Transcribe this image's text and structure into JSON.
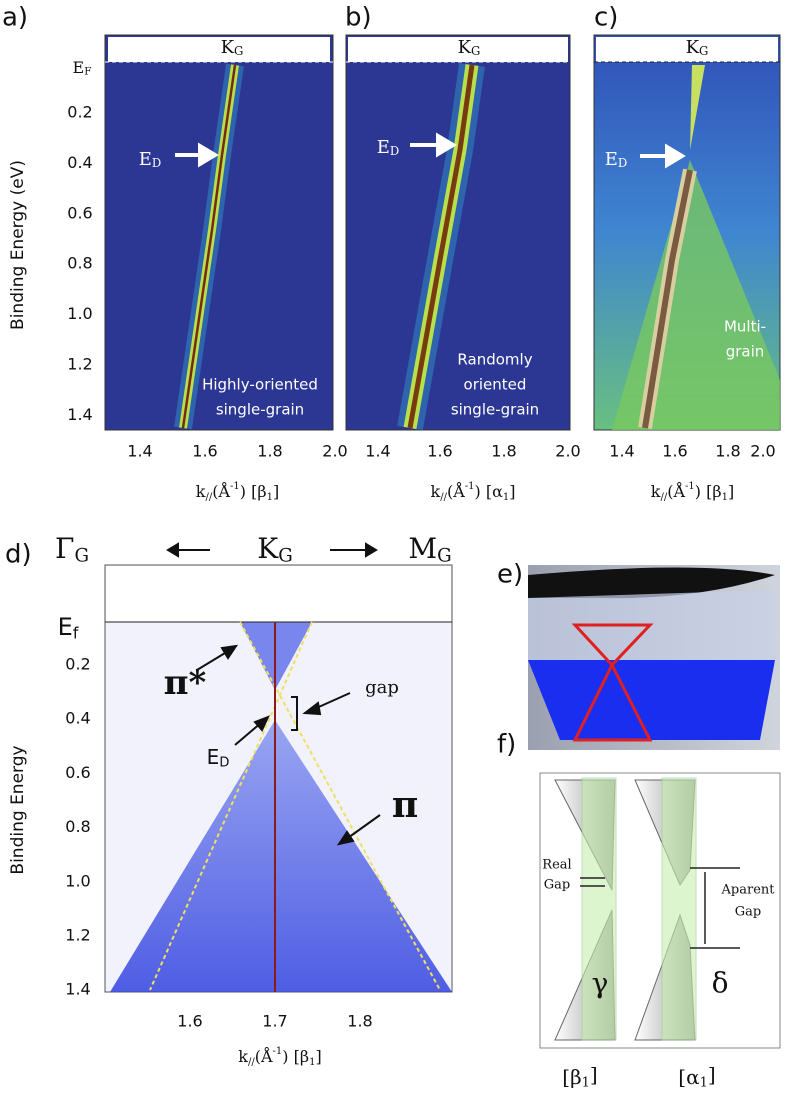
{
  "panels_abc": [
    {
      "letter": "a)",
      "point": {
        "base": "K",
        "sub": "G"
      },
      "dirac": {
        "base": "E",
        "sub": "D"
      },
      "note": [
        "Highly-oriented",
        "single-grain"
      ],
      "x_ticks": [
        "1.4",
        "1.6",
        "1.8",
        "2.0"
      ],
      "x_label": [
        {
          "text": "k"
        },
        {
          "text": "//",
          "sub": true
        },
        {
          "text": "(Å"
        },
        {
          "text": "-1",
          "sup": true
        },
        {
          "text": ") [β"
        },
        {
          "text": "1",
          "sub": true
        },
        {
          "text": "]"
        }
      ]
    },
    {
      "letter": "b)",
      "point": {
        "base": "K",
        "sub": "G"
      },
      "dirac": {
        "base": "E",
        "sub": "D"
      },
      "note": [
        "Randomly",
        "oriented",
        "single-grain"
      ],
      "x_ticks": [
        "1.4",
        "1.6",
        "1.8",
        "2.0"
      ],
      "x_label": [
        {
          "text": "k"
        },
        {
          "text": "//",
          "sub": true
        },
        {
          "text": "(Å"
        },
        {
          "text": "-1",
          "sup": true
        },
        {
          "text": ") [α"
        },
        {
          "text": "1",
          "sub": true
        },
        {
          "text": "]"
        }
      ]
    },
    {
      "letter": "c)",
      "point": {
        "base": "K",
        "sub": "G"
      },
      "dirac": {
        "base": "E",
        "sub": "D"
      },
      "note": [
        "Multi-",
        "grain"
      ],
      "x_ticks": [
        "1.4",
        "1.6",
        "1.8",
        "2.0"
      ],
      "x_label": [
        {
          "text": "k"
        },
        {
          "text": "//",
          "sub": true
        },
        {
          "text": "(Å"
        },
        {
          "text": "-1",
          "sup": true
        },
        {
          "text": ") [β"
        },
        {
          "text": "1",
          "sub": true
        },
        {
          "text": "]"
        }
      ]
    }
  ],
  "abc_fermi": {
    "base": "E",
    "sub": "F"
  },
  "abc_y_label": "Binding Energy (eV)",
  "abc_y_ticks": [
    "0.2",
    "0.4",
    "0.6",
    "0.8",
    "1.0",
    "1.2",
    "1.4"
  ],
  "panel_d": {
    "letter": "d)",
    "left": {
      "base": "Γ",
      "sub": "G"
    },
    "center": {
      "base": "K",
      "sub": "G"
    },
    "right": {
      "base": "M",
      "sub": "G"
    },
    "fermi": {
      "base": "E",
      "sub": "f"
    },
    "y_label": "Binding Energy",
    "y_ticks": [
      "0.2",
      "0.4",
      "0.6",
      "0.8",
      "1.0",
      "1.2",
      "1.4"
    ],
    "x_ticks": [
      "1.6",
      "1.7",
      "1.8"
    ],
    "x_label": [
      {
        "text": "k"
      },
      {
        "text": "//",
        "sub": true
      },
      {
        "text": "(Å"
      },
      {
        "text": "-1",
        "sup": true
      },
      {
        "text": ") [β"
      },
      {
        "text": "1",
        "sub": true
      },
      {
        "text": "]"
      }
    ],
    "pi_star": "π*",
    "pi": "π",
    "gap": "gap",
    "dirac": {
      "base": "E",
      "sub": "D"
    }
  },
  "panel_e": {
    "letter": "e)"
  },
  "panel_f": {
    "letter": "f)",
    "real_gap": [
      "Real",
      "Gap"
    ],
    "apparent_gap": [
      "Aparent",
      "Gap"
    ],
    "gamma": "γ",
    "delta": "δ",
    "left_dir": {
      "base": "[β",
      "sub": "1",
      "end": "]"
    },
    "right_dir": {
      "base": "[α",
      "sub": "1",
      "end": "]"
    }
  }
}
